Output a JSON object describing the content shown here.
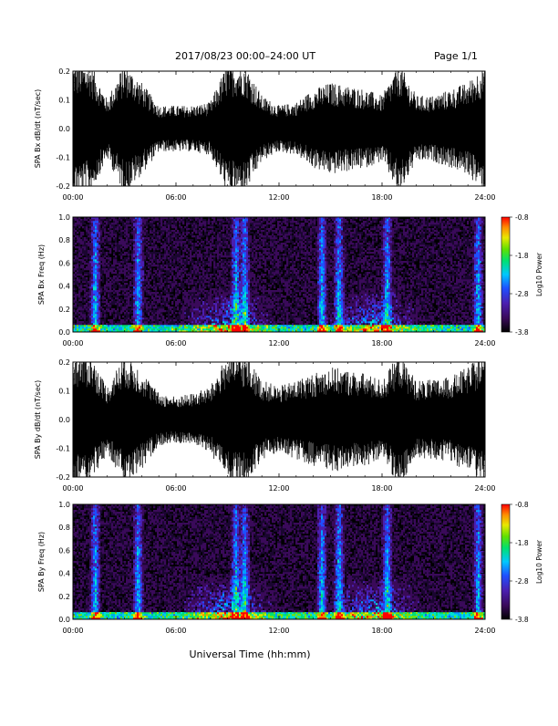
{
  "header": {
    "title": "2017/08/23  00:00–24:00 UT",
    "page": "Page 1/1"
  },
  "xaxis_title": "Universal Time (hh:mm)",
  "chart_data": [
    {
      "type": "line",
      "ylabel": "SPA Bx dB/dt (nT/sec)",
      "xlim": [
        "00:00",
        "24:00"
      ],
      "x_ticks": [
        "00:00",
        "06:00",
        "12:00",
        "18:00",
        "24:00"
      ],
      "ylim": [
        -0.2,
        0.2
      ],
      "y_ticks": [
        "-0.2",
        "-0.1",
        "0.0",
        "0.1",
        "0.2"
      ],
      "envelope_hours": [
        0,
        1,
        2,
        3,
        4,
        5,
        6,
        7,
        8,
        9,
        10,
        11,
        12,
        13,
        14,
        15,
        16,
        17,
        18,
        19,
        20,
        21,
        22,
        23,
        24
      ],
      "envelope_amplitude": [
        0.2,
        0.2,
        0.09,
        0.2,
        0.14,
        0.07,
        0.07,
        0.07,
        0.08,
        0.2,
        0.2,
        0.1,
        0.07,
        0.08,
        0.12,
        0.14,
        0.13,
        0.12,
        0.1,
        0.2,
        0.1,
        0.1,
        0.12,
        0.14,
        0.2
      ]
    },
    {
      "type": "heatmap",
      "ylabel": "SPA Bx Freq (Hz)",
      "xlim": [
        "00:00",
        "24:00"
      ],
      "x_ticks": [
        "00:00",
        "06:00",
        "12:00",
        "18:00",
        "24:00"
      ],
      "ylim": [
        0.0,
        1.0
      ],
      "y_ticks": [
        "0.0",
        "0.2",
        "0.4",
        "0.6",
        "0.8",
        "1.0"
      ],
      "colorbar": {
        "label": "Log10 Power",
        "range": [
          -3.8,
          -0.8
        ],
        "ticks": [
          "-0.8",
          "-1.8",
          "-2.8",
          "-3.8"
        ]
      },
      "broadband_bursts_hours": [
        1.3,
        3.8,
        9.5,
        10.0,
        14.5,
        15.5,
        18.3,
        23.6
      ],
      "low_frequency_enhancement_hours": [
        9.0,
        17.5
      ]
    },
    {
      "type": "line",
      "ylabel": "SPA By dB/dt (nT/sec)",
      "xlim": [
        "00:00",
        "24:00"
      ],
      "x_ticks": [
        "00:00",
        "06:00",
        "12:00",
        "18:00",
        "24:00"
      ],
      "ylim": [
        -0.2,
        0.2
      ],
      "y_ticks": [
        "-0.2",
        "-0.1",
        "0.0",
        "0.1",
        "0.2"
      ],
      "envelope_hours": [
        0,
        1,
        2,
        3,
        4,
        5,
        6,
        7,
        8,
        9,
        10,
        11,
        12,
        13,
        14,
        15,
        16,
        17,
        18,
        19,
        20,
        21,
        22,
        23,
        24
      ],
      "envelope_amplitude": [
        0.2,
        0.2,
        0.1,
        0.2,
        0.15,
        0.08,
        0.07,
        0.08,
        0.1,
        0.2,
        0.2,
        0.12,
        0.1,
        0.12,
        0.14,
        0.16,
        0.15,
        0.14,
        0.12,
        0.2,
        0.12,
        0.12,
        0.13,
        0.16,
        0.2
      ]
    },
    {
      "type": "heatmap",
      "ylabel": "SPA By Freq (Hz)",
      "xlim": [
        "00:00",
        "24:00"
      ],
      "x_ticks": [
        "00:00",
        "06:00",
        "12:00",
        "18:00",
        "24:00"
      ],
      "ylim": [
        0.0,
        1.0
      ],
      "y_ticks": [
        "0.0",
        "0.2",
        "0.4",
        "0.6",
        "0.8",
        "1.0"
      ],
      "colorbar": {
        "label": "Log10 Power",
        "range": [
          -3.8,
          -0.8
        ],
        "ticks": [
          "-0.8",
          "-1.8",
          "-2.8",
          "-3.8"
        ]
      },
      "broadband_bursts_hours": [
        1.3,
        3.8,
        9.5,
        10.0,
        14.5,
        15.5,
        18.3,
        23.6
      ],
      "low_frequency_enhancement_hours": [
        9.0,
        17.5
      ]
    }
  ]
}
